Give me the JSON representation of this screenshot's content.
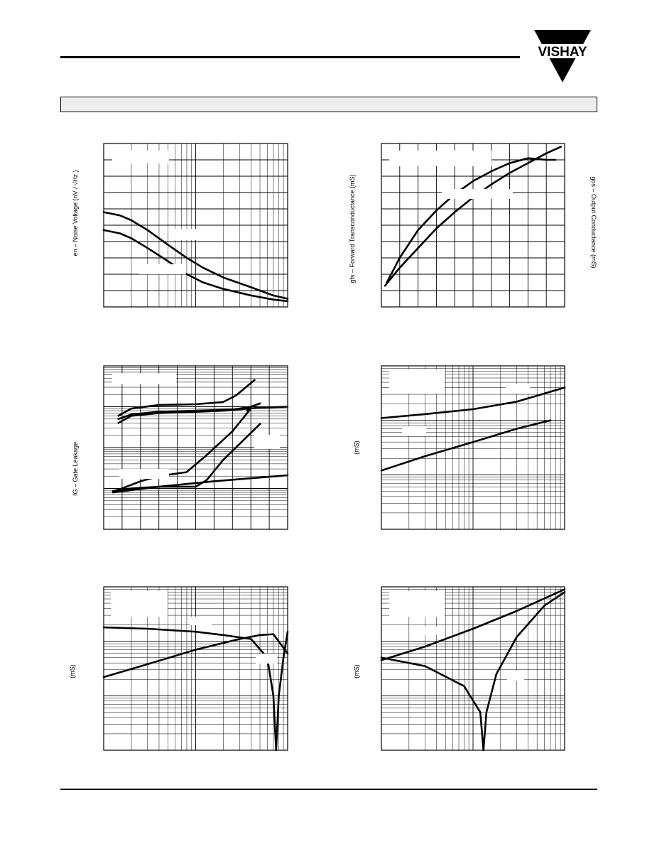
{
  "header": {
    "brand": "VISHAY"
  },
  "colors": {
    "ink": "#000000",
    "banner": "#ededed",
    "grid": "#000000"
  },
  "labels": {
    "c1_ylabel_prefix": "en – Noise Voltage",
    "c1_ylabel_unit": "(nV / √Hz )",
    "c2_ylabel_left": "gfs – Forward Transconductance (mS)",
    "c2_ylabel_right": "gos – Output Conductance (mS)",
    "c3_ylabel": "IG – Gate Leakage",
    "c4_ylabel": "(mS)",
    "c5_ylabel": "(mS)",
    "c6_ylabel": "(mS)"
  },
  "chart_data": [
    {
      "id": "c1",
      "type": "line",
      "xscale": "log",
      "yscale": "linear",
      "xlim": [
        1,
        100
      ],
      "ylim": [
        0,
        10
      ],
      "grid": true,
      "series": [
        {
          "x": [
            1,
            1.5,
            2,
            3,
            5,
            8,
            12,
            20,
            40,
            70,
            100
          ],
          "y": [
            5.8,
            5.6,
            5.3,
            4.7,
            3.8,
            3.0,
            2.4,
            1.8,
            1.2,
            0.7,
            0.5
          ]
        },
        {
          "x": [
            1,
            1.5,
            2,
            3,
            5,
            8,
            12,
            20,
            40,
            70,
            100
          ],
          "y": [
            4.7,
            4.5,
            4.2,
            3.6,
            2.8,
            2.0,
            1.5,
            1.1,
            0.7,
            0.45,
            0.35
          ]
        }
      ]
    },
    {
      "id": "c2",
      "type": "line",
      "xscale": "linear",
      "yscale": "linear",
      "xlim": [
        0,
        10
      ],
      "ylim": [
        0,
        10
      ],
      "grid": true,
      "series": [
        {
          "x": [
            0.3,
            1,
            2,
            3,
            4,
            5,
            6,
            7,
            8,
            9,
            9.5
          ],
          "y": [
            1.5,
            3.0,
            4.7,
            5.9,
            6.9,
            7.7,
            8.3,
            8.8,
            9.1,
            9.0,
            9.0
          ]
        },
        {
          "x": [
            0.2,
            1,
            2,
            3,
            4,
            5,
            6,
            7,
            8,
            9,
            9.8
          ],
          "y": [
            1.3,
            2.4,
            3.6,
            4.8,
            5.8,
            6.7,
            7.5,
            8.2,
            8.8,
            9.4,
            9.8
          ]
        }
      ]
    },
    {
      "id": "c3",
      "type": "line",
      "xscale": "linear",
      "yscale": "log",
      "xlim": [
        0,
        10
      ],
      "ylim": [
        0.001,
        10
      ],
      "grid": true,
      "series": [
        {
          "x": [
            0.8,
            1.5,
            3,
            5,
            6.5,
            7.2,
            8.2
          ],
          "y": [
            0.6,
            0.9,
            1.1,
            1.15,
            1.3,
            1.9,
            4.5
          ]
        },
        {
          "x": [
            0.8,
            1.5,
            3,
            5,
            6.5,
            8.5,
            10
          ],
          "y": [
            0.4,
            0.6,
            0.7,
            0.75,
            0.8,
            0.95,
            1.0
          ]
        },
        {
          "x": [
            0.8,
            1.5,
            3,
            5,
            7,
            8,
            8.5
          ],
          "y": [
            0.5,
            0.65,
            0.75,
            0.8,
            0.85,
            1.0,
            1.2
          ]
        },
        {
          "x": [
            0.5,
            1,
            2,
            3,
            4.5,
            5.5,
            7,
            8,
            7.8
          ],
          "y": [
            0.0085,
            0.01,
            0.015,
            0.02,
            0.025,
            0.06,
            0.25,
            0.9,
            0.8
          ]
        },
        {
          "x": [
            0.7,
            1.5,
            3,
            5,
            5.6,
            6.5,
            8.5
          ],
          "y": [
            0.009,
            0.01,
            0.011,
            0.011,
            0.016,
            0.05,
            0.38
          ]
        },
        {
          "x": [
            0.5,
            3,
            6,
            10
          ],
          "y": [
            0.008,
            0.011,
            0.015,
            0.021
          ]
        }
      ]
    },
    {
      "id": "c4",
      "type": "line",
      "xscale": "log",
      "yscale": "log",
      "xlim": [
        1,
        100
      ],
      "ylim": [
        0.01,
        10
      ],
      "grid": true,
      "series": [
        {
          "x": [
            1,
            3,
            10,
            30,
            100
          ],
          "y": [
            1.1,
            1.3,
            1.6,
            2.2,
            4.0
          ]
        },
        {
          "x": [
            1,
            3,
            10,
            30,
            70
          ],
          "y": [
            0.12,
            0.22,
            0.4,
            0.7,
            1.0
          ]
        }
      ]
    },
    {
      "id": "c5",
      "type": "line",
      "xscale": "log",
      "yscale": "log",
      "xlim": [
        1,
        100
      ],
      "ylim": [
        0.01,
        10
      ],
      "grid": true,
      "series": [
        {
          "x": [
            1,
            3,
            10,
            20,
            40,
            60,
            70,
            75,
            80,
            90,
            100
          ],
          "y": [
            1.8,
            1.7,
            1.5,
            1.3,
            1.1,
            0.5,
            0.1,
            0.01,
            0.1,
            0.5,
            1.5
          ]
        },
        {
          "x": [
            1,
            3,
            10,
            30,
            50,
            70,
            100
          ],
          "y": [
            0.22,
            0.38,
            0.7,
            1.1,
            1.3,
            1.35,
            0.6
          ]
        }
      ]
    },
    {
      "id": "c6",
      "type": "line",
      "xscale": "log",
      "yscale": "log",
      "xlim": [
        1,
        100
      ],
      "ylim": [
        0.01,
        10
      ],
      "grid": true,
      "series": [
        {
          "x": [
            1,
            3,
            10,
            30,
            100
          ],
          "y": [
            0.45,
            0.8,
            1.7,
            3.6,
            9.0
          ]
        },
        {
          "x": [
            1,
            3,
            8,
            12,
            13,
            14,
            18,
            30,
            60,
            100
          ],
          "y": [
            0.5,
            0.35,
            0.15,
            0.05,
            0.01,
            0.05,
            0.25,
            1.2,
            4.5,
            8.0
          ]
        }
      ]
    }
  ]
}
